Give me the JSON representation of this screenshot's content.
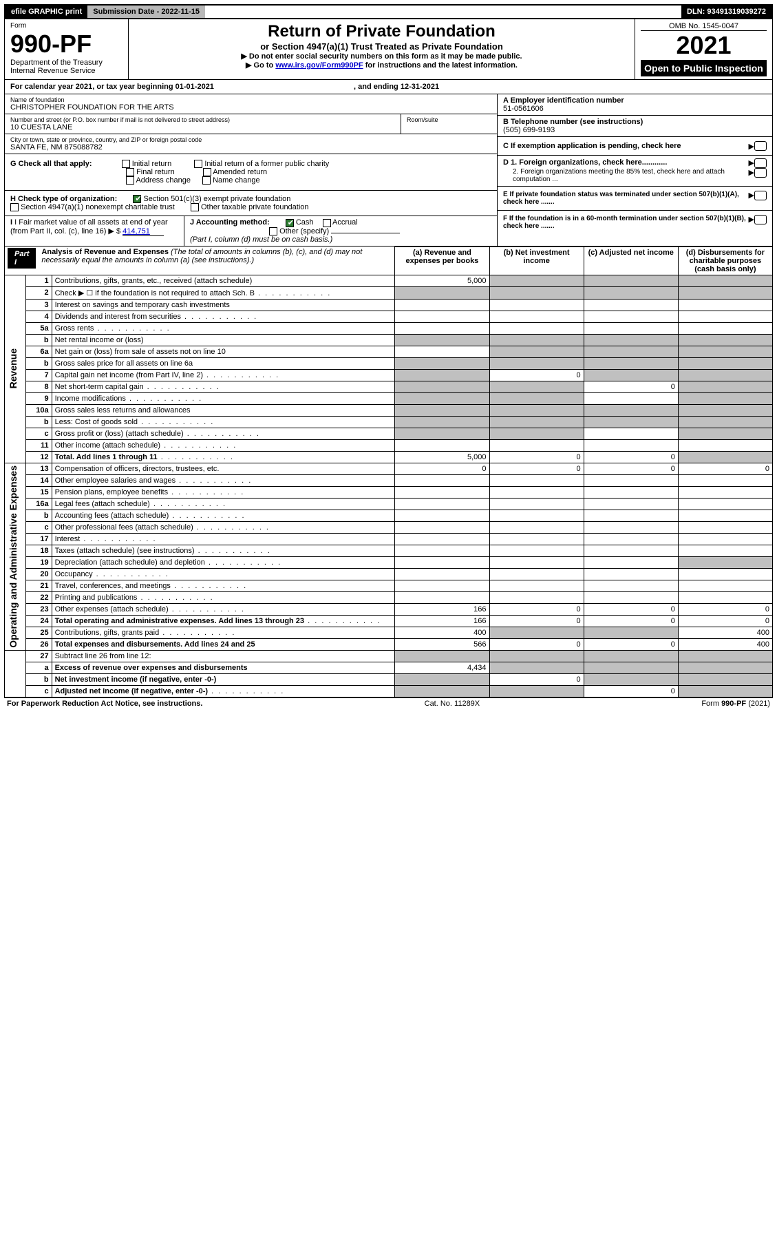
{
  "topbar": {
    "efile": "efile GRAPHIC print",
    "submission": "Submission Date - 2022-11-15",
    "dln": "DLN: 93491319039272"
  },
  "header": {
    "form_label": "Form",
    "form_no": "990-PF",
    "dept1": "Department of the Treasury",
    "dept2": "Internal Revenue Service",
    "title": "Return of Private Foundation",
    "subtitle": "or Section 4947(a)(1) Trust Treated as Private Foundation",
    "instr1": "▶ Do not enter social security numbers on this form as it may be made public.",
    "instr2_a": "▶ Go to ",
    "instr2_link": "www.irs.gov/Form990PF",
    "instr2_b": " for instructions and the latest information.",
    "omb": "OMB No. 1545-0047",
    "year": "2021",
    "otp": "Open to Public Inspection"
  },
  "cy": {
    "text_a": "For calendar year 2021, or tax year beginning ",
    "begin": "01-01-2021",
    "text_b": " , and ending ",
    "end": "12-31-2021"
  },
  "id": {
    "name_label": "Name of foundation",
    "name": "CHRISTOPHER FOUNDATION FOR THE ARTS",
    "addr_label": "Number and street (or P.O. box number if mail is not delivered to street address)",
    "room_label": "Room/suite",
    "addr": "10 CUESTA LANE",
    "city_label": "City or town, state or province, country, and ZIP or foreign postal code",
    "city": "SANTA FE, NM  875088782",
    "a_label": "A Employer identification number",
    "a_val": "51-0561606",
    "b_label": "B Telephone number (see instructions)",
    "b_val": "(505) 699-9193",
    "c_label": "C If exemption application is pending, check here",
    "d1": "D 1. Foreign organizations, check here............",
    "d2": "2. Foreign organizations meeting the 85% test, check here and attach computation ...",
    "e": "E  If private foundation status was terminated under section 507(b)(1)(A), check here .......",
    "f": "F  If the foundation is in a 60-month termination under section 507(b)(1)(B), check here .......",
    "g_label": "G Check all that apply:",
    "g_opts": [
      "Initial return",
      "Initial return of a former public charity",
      "Final return",
      "Amended return",
      "Address change",
      "Name change"
    ],
    "h_label": "H Check type of organization:",
    "h_opts": [
      "Section 501(c)(3) exempt private foundation",
      "Section 4947(a)(1) nonexempt charitable trust",
      "Other taxable private foundation"
    ],
    "i_label": "I Fair market value of all assets at end of year (from Part II, col. (c), line 16)",
    "i_val": "414,751",
    "j_label": "J Accounting method:",
    "j_opts": [
      "Cash",
      "Accrual",
      "Other (specify)"
    ],
    "j_note": "(Part I, column (d) must be on cash basis.)"
  },
  "part1": {
    "tag": "Part I",
    "title": "Analysis of Revenue and Expenses",
    "title_note": " (The total of amounts in columns (b), (c), and (d) may not necessarily equal the amounts in column (a) (see instructions).)",
    "cols": [
      "(a)  Revenue and expenses per books",
      "(b)  Net investment income",
      "(c)  Adjusted net income",
      "(d)  Disbursements for charitable purposes (cash basis only)"
    ],
    "side_revenue": "Revenue",
    "side_expenses": "Operating and Administrative Expenses",
    "rows": [
      {
        "n": "1",
        "d": "Contributions, gifts, grants, etc., received (attach schedule)",
        "a": "5,000",
        "b": "g",
        "c": "g",
        "dd": "g"
      },
      {
        "n": "2",
        "d": "Check ▶ ☐ if the foundation is not required to attach Sch. B",
        "dots": true,
        "a": "g",
        "b": "g",
        "c": "g",
        "dd": "g"
      },
      {
        "n": "3",
        "d": "Interest on savings and temporary cash investments"
      },
      {
        "n": "4",
        "d": "Dividends and interest from securities",
        "dots": true
      },
      {
        "n": "5a",
        "d": "Gross rents",
        "dots": true
      },
      {
        "n": "b",
        "d": "Net rental income or (loss)",
        "a": "g",
        "b": "g",
        "c": "g",
        "dd": "g"
      },
      {
        "n": "6a",
        "d": "Net gain or (loss) from sale of assets not on line 10",
        "b": "g",
        "c": "g",
        "dd": "g"
      },
      {
        "n": "b",
        "d": "Gross sales price for all assets on line 6a",
        "a": "g",
        "b": "g",
        "c": "g",
        "dd": "g"
      },
      {
        "n": "7",
        "d": "Capital gain net income (from Part IV, line 2)",
        "dots": true,
        "a": "g",
        "b": "0",
        "c": "g",
        "dd": "g"
      },
      {
        "n": "8",
        "d": "Net short-term capital gain",
        "dots": true,
        "a": "g",
        "b": "g",
        "c": "0",
        "dd": "g"
      },
      {
        "n": "9",
        "d": "Income modifications",
        "dots": true,
        "a": "g",
        "b": "g",
        "dd": "g"
      },
      {
        "n": "10a",
        "d": "Gross sales less returns and allowances",
        "a": "g",
        "b": "g",
        "c": "g",
        "dd": "g"
      },
      {
        "n": "b",
        "d": "Less: Cost of goods sold",
        "dots": true,
        "a": "g",
        "b": "g",
        "c": "g",
        "dd": "g"
      },
      {
        "n": "c",
        "d": "Gross profit or (loss) (attach schedule)",
        "dots": true,
        "a": "g",
        "b": "g",
        "dd": "g"
      },
      {
        "n": "11",
        "d": "Other income (attach schedule)",
        "dots": true
      },
      {
        "n": "12",
        "d": "Total. Add lines 1 through 11",
        "bold": true,
        "dots": true,
        "a": "5,000",
        "b": "0",
        "c": "0",
        "dd": "g"
      },
      {
        "n": "13",
        "d": "Compensation of officers, directors, trustees, etc.",
        "a": "0",
        "b": "0",
        "c": "0",
        "dd": "0"
      },
      {
        "n": "14",
        "d": "Other employee salaries and wages",
        "dots": true
      },
      {
        "n": "15",
        "d": "Pension plans, employee benefits",
        "dots": true
      },
      {
        "n": "16a",
        "d": "Legal fees (attach schedule)",
        "dots": true
      },
      {
        "n": "b",
        "d": "Accounting fees (attach schedule)",
        "dots": true
      },
      {
        "n": "c",
        "d": "Other professional fees (attach schedule)",
        "dots": true
      },
      {
        "n": "17",
        "d": "Interest",
        "dots": true
      },
      {
        "n": "18",
        "d": "Taxes (attach schedule) (see instructions)",
        "dots": true
      },
      {
        "n": "19",
        "d": "Depreciation (attach schedule) and depletion",
        "dots": true,
        "dd": "g"
      },
      {
        "n": "20",
        "d": "Occupancy",
        "dots": true
      },
      {
        "n": "21",
        "d": "Travel, conferences, and meetings",
        "dots": true
      },
      {
        "n": "22",
        "d": "Printing and publications",
        "dots": true
      },
      {
        "n": "23",
        "d": "Other expenses (attach schedule)",
        "dots": true,
        "a": "166",
        "b": "0",
        "c": "0",
        "dd": "0"
      },
      {
        "n": "24",
        "d": "Total operating and administrative expenses. Add lines 13 through 23",
        "bold": true,
        "dots": true,
        "a": "166",
        "b": "0",
        "c": "0",
        "dd": "0"
      },
      {
        "n": "25",
        "d": "Contributions, gifts, grants paid",
        "dots": true,
        "a": "400",
        "b": "g",
        "c": "g",
        "dd": "400"
      },
      {
        "n": "26",
        "d": "Total expenses and disbursements. Add lines 24 and 25",
        "bold": true,
        "a": "566",
        "b": "0",
        "c": "0",
        "dd": "400"
      },
      {
        "n": "27",
        "d": "Subtract line 26 from line 12:",
        "a": "g",
        "b": "g",
        "c": "g",
        "dd": "g"
      },
      {
        "n": "a",
        "d": "Excess of revenue over expenses and disbursements",
        "bold": true,
        "a": "4,434",
        "b": "g",
        "c": "g",
        "dd": "g"
      },
      {
        "n": "b",
        "d": "Net investment income (if negative, enter -0-)",
        "bold": true,
        "a": "g",
        "b": "0",
        "c": "g",
        "dd": "g"
      },
      {
        "n": "c",
        "d": "Adjusted net income (if negative, enter -0-)",
        "bold": true,
        "dots": true,
        "a": "g",
        "b": "g",
        "c": "0",
        "dd": "g"
      }
    ]
  },
  "footer": {
    "left": "For Paperwork Reduction Act Notice, see instructions.",
    "mid": "Cat. No. 11289X",
    "right": "Form 990-PF (2021)"
  },
  "colors": {
    "link": "#0000cc",
    "grey": "#c0c0c0",
    "topbar_grey": "#b8b8b8",
    "check_green": "#2e7d32"
  }
}
